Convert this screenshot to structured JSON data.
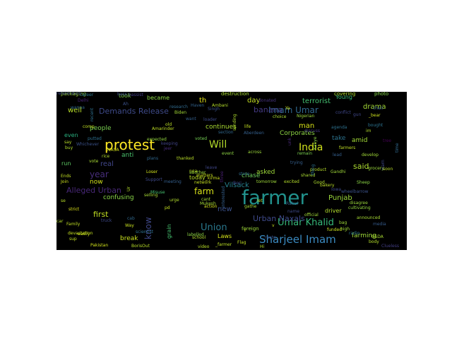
{
  "wordcloud": {
    "background": "#000000",
    "words": [
      {
        "text": "farmer",
        "color": "#21918c"
      },
      {
        "text": "protest",
        "color": "#fde725"
      },
      {
        "text": "Sharjeel Imam",
        "color": "#3b8bc2"
      },
      {
        "text": "Umar Khalid",
        "color": "#35b779"
      },
      {
        "text": "Union",
        "color": "#2a788e"
      },
      {
        "text": "Will",
        "color": "#b5de2b"
      },
      {
        "text": "India",
        "color": "#d0e11c"
      },
      {
        "text": "Urban Naxals",
        "color": "#3e4989"
      },
      {
        "text": "Alleged Urban",
        "color": "#482878"
      },
      {
        "text": "Imam Umar",
        "color": "#31688e"
      },
      {
        "text": "Demands Release",
        "color": "#3e4a89"
      },
      {
        "text": "Agitating",
        "color": "#26828e"
      },
      {
        "text": "terrorist",
        "color": "#44bf70"
      },
      {
        "text": "farm",
        "color": "#d8e219"
      },
      {
        "text": "banana",
        "color": "#443983"
      },
      {
        "text": "year",
        "color": "#472d7b"
      },
      {
        "text": "said",
        "color": "#addc30"
      },
      {
        "text": "well",
        "color": "#b8de29"
      },
      {
        "text": "first",
        "color": "#c2df23"
      },
      {
        "text": "Punjab",
        "color": "#9bd93c"
      },
      {
        "text": "chase",
        "color": "#6ccd5a"
      },
      {
        "text": "farming",
        "color": "#a0da39"
      },
      {
        "text": "now",
        "color": "#d2e21b"
      },
      {
        "text": "drama",
        "color": "#a5db36"
      },
      {
        "text": "day",
        "color": "#c5e021"
      },
      {
        "text": "Corporates",
        "color": "#8ed645"
      },
      {
        "text": "Vilsack",
        "color": "#27808e"
      },
      {
        "text": "today",
        "color": "#bddf26"
      },
      {
        "text": "continues",
        "color": "#aadc32"
      },
      {
        "text": "people",
        "color": "#7ad151"
      },
      {
        "text": "Young",
        "color": "#38b977"
      },
      {
        "text": "man",
        "color": "#d8e219"
      },
      {
        "text": "amid",
        "color": "#a2da37"
      },
      {
        "text": "take",
        "color": "#2c738e"
      },
      {
        "text": "asked",
        "color": "#9fda3a"
      },
      {
        "text": "new",
        "color": "#3b528b"
      },
      {
        "text": "real",
        "color": "#404688"
      },
      {
        "text": "break",
        "color": "#cae11f"
      },
      {
        "text": "know",
        "color": "#3f4788"
      },
      {
        "text": "run",
        "color": "#5cc863"
      },
      {
        "text": "even",
        "color": "#2ab07f"
      },
      {
        "text": "anti",
        "color": "#4ac16d"
      },
      {
        "text": "became",
        "color": "#8bd646"
      },
      {
        "text": "took",
        "color": "#7fd34e"
      },
      {
        "text": "th",
        "color": "#e5e419"
      },
      {
        "text": "driver",
        "color": "#b2dd2d"
      },
      {
        "text": "Laws",
        "color": "#d5e21a"
      },
      {
        "text": "grain",
        "color": "#46c06f"
      },
      {
        "text": "confusing",
        "color": "#89d548"
      },
      {
        "text": "foreign",
        "color": "#9bd93c"
      },
      {
        "text": "packaging",
        "color": "#9dd93b"
      },
      {
        "text": "destruction",
        "color": "#a8db34"
      },
      {
        "text": "covering",
        "color": "#b0dd2f"
      },
      {
        "text": "photo",
        "color": "#85d54a"
      },
      {
        "text": "research",
        "color": "#306a8e"
      },
      {
        "text": "Ambani",
        "color": "#b5de2b"
      },
      {
        "text": "Biden",
        "color": "#a5db36"
      },
      {
        "text": "Singh",
        "color": "#3b528b"
      },
      {
        "text": "donated",
        "color": "#46337f"
      },
      {
        "text": "conflict",
        "color": "#3f4788"
      },
      {
        "text": "bought",
        "color": "#2c728e"
      },
      {
        "text": "choice",
        "color": "#aadc32"
      },
      {
        "text": "Nigerian",
        "color": "#9bd93c"
      },
      {
        "text": "agenda",
        "color": "#2d708e"
      },
      {
        "text": "section",
        "color": "#31688e"
      },
      {
        "text": "Amarinder",
        "color": "#c0df25"
      },
      {
        "text": "keeping",
        "color": "#414487"
      },
      {
        "text": "voted",
        "color": "#75d054"
      },
      {
        "text": "event",
        "color": "#8fd744"
      },
      {
        "text": "across",
        "color": "#9dd93b"
      },
      {
        "text": "remain",
        "color": "#7cd250"
      },
      {
        "text": "lead",
        "color": "#355f8d"
      },
      {
        "text": "develop",
        "color": "#a2da37"
      },
      {
        "text": "rice",
        "color": "#b2dd2d"
      },
      {
        "text": "plans",
        "color": "#31688e"
      },
      {
        "text": "thanked",
        "color": "#bade28"
      },
      {
        "text": "Loser",
        "color": "#d0e11c"
      },
      {
        "text": "Bori",
        "color": "#3f4788"
      },
      {
        "text": "store",
        "color": "#2f6c8e"
      },
      {
        "text": "trying",
        "color": "#35608d"
      },
      {
        "text": "product",
        "color": "#b8de29"
      },
      {
        "text": "Gandhi",
        "color": "#a0da39"
      },
      {
        "text": "grocery",
        "color": "#9bd93c"
      },
      {
        "text": "Join",
        "color": "#cde11d"
      },
      {
        "text": "Ends",
        "color": "#c2df23"
      },
      {
        "text": "nga",
        "color": "#bddf26"
      },
      {
        "text": "selling",
        "color": "#a8db34"
      },
      {
        "text": "matters",
        "color": "#c8e020"
      },
      {
        "text": "network",
        "color": "#c5e021"
      },
      {
        "text": "tomorrow",
        "color": "#9fda3a"
      },
      {
        "text": "excited",
        "color": "#b5de2b"
      },
      {
        "text": "shared",
        "color": "#aadc32"
      },
      {
        "text": "Good",
        "color": "#b0dd2f"
      },
      {
        "text": "bakery",
        "color": "#bade28"
      },
      {
        "text": "Iowa",
        "color": "#3e4989"
      },
      {
        "text": "wheelbarrow",
        "color": "#3b528b"
      },
      {
        "text": "Sheep",
        "color": "#8bd646"
      },
      {
        "text": "strict",
        "color": "#dde318"
      },
      {
        "text": "Misuse",
        "color": "#46c06f"
      },
      {
        "text": "meeting",
        "color": "#355f8d"
      },
      {
        "text": "urge",
        "color": "#b2dd2d"
      },
      {
        "text": "Mukesh",
        "color": "#a5db36"
      },
      {
        "text": "action",
        "color": "#d2e21b"
      },
      {
        "text": "gathe",
        "color": "#a8db34"
      },
      {
        "text": "Rahul",
        "color": "#33638d"
      },
      {
        "text": "cultivating",
        "color": "#95d840"
      },
      {
        "text": "disagree",
        "color": "#9bd93c"
      },
      {
        "text": "Family",
        "color": "#c0df25"
      },
      {
        "text": "scientist",
        "color": "#2e6f8e"
      },
      {
        "text": "school",
        "color": "#b0dd2f"
      },
      {
        "text": "labelled",
        "color": "#8ed645"
      },
      {
        "text": "official",
        "color": "#a2da37"
      },
      {
        "text": "funded",
        "color": "#cae11f"
      },
      {
        "text": "announced",
        "color": "#a8db34"
      },
      {
        "text": "devastation",
        "color": "#c5e021"
      },
      {
        "text": "media",
        "color": "#365c8d"
      },
      {
        "text": "USDA",
        "color": "#aadc32"
      },
      {
        "text": "body",
        "color": "#b5de2b"
      },
      {
        "text": "Pakistan",
        "color": "#d0e11c"
      },
      {
        "text": "BorisOut",
        "color": "#b8de29"
      },
      {
        "text": "Flag",
        "color": "#c2df23"
      },
      {
        "text": "_farmer",
        "color": "#bddf26"
      },
      {
        "text": "Clueless",
        "color": "#433e85"
      },
      {
        "text": "high",
        "color": "#a0da39"
      },
      {
        "text": "bag",
        "color": "#9fda3a"
      },
      {
        "text": "cab",
        "color": "#31688e"
      },
      {
        "text": "Way",
        "color": "#c8e020"
      },
      {
        "text": "buy",
        "color": "#b2dd2d"
      },
      {
        "text": "say",
        "color": "#bade28"
      },
      {
        "text": "vote",
        "color": "#a8db34"
      },
      {
        "text": "Whichever",
        "color": "#3b528b"
      },
      {
        "text": "comp",
        "color": "#c2df23"
      },
      {
        "text": "putted",
        "color": "#2d708e"
      },
      {
        "text": "want",
        "color": "#35608d"
      },
      {
        "text": "loader",
        "color": "#3e4a89"
      },
      {
        "text": "life",
        "color": "#c5e021"
      },
      {
        "text": "discuss",
        "color": "#453882"
      },
      {
        "text": "chair",
        "color": "#365c8d"
      },
      {
        "text": "_bear",
        "color": "#cde11d"
      },
      {
        "text": "another",
        "color": "#9bd93c"
      },
      {
        "text": "leave",
        "color": "#3f4788"
      },
      {
        "text": "Aberdeen",
        "color": "#35608d"
      },
      {
        "text": "Ya",
        "color": "#c8e020"
      },
      {
        "text": "old",
        "color": "#bddf26"
      },
      {
        "text": "expected",
        "color": "#95d840"
      },
      {
        "text": "cant",
        "color": "#a5db36"
      },
      {
        "text": "Ah",
        "color": "#3b528b"
      },
      {
        "text": "sup",
        "color": "#c0df25"
      },
      {
        "text": "car",
        "color": "#b5de2b"
      },
      {
        "text": "easily",
        "color": "#cae11f"
      },
      {
        "text": "truck",
        "color": "#3e4989"
      },
      {
        "text": "se",
        "color": "#b8de29"
      },
      {
        "text": "NASA",
        "color": "#d5e21a"
      },
      {
        "text": "bass",
        "color": "#3e4a89"
      },
      {
        "text": "bassist",
        "color": "#433e85"
      },
      {
        "text": "recent",
        "color": "#2e6f8e"
      },
      {
        "text": "tree",
        "color": "#440154"
      },
      {
        "text": "wanna",
        "color": "#31688e"
      },
      {
        "text": "Haven",
        "color": "#33638d"
      },
      {
        "text": "I",
        "color": "#c8e020"
      },
      {
        "text": "v",
        "color": "#c8e020"
      },
      {
        "text": "Hi",
        "color": "#b2dd2d"
      },
      {
        "text": "im",
        "color": "#b5de2b"
      },
      {
        "text": "warn",
        "color": "#3e4989"
      },
      {
        "text": "soon",
        "color": "#bade28"
      },
      {
        "text": "career",
        "color": "#2a788e"
      },
      {
        "text": "Delhi",
        "color": "#482475"
      },
      {
        "text": "jeer",
        "color": "#472d7b"
      },
      {
        "text": "_kirma",
        "color": "#cde11d"
      },
      {
        "text": "gun",
        "color": "#3f4788"
      },
      {
        "text": "pd",
        "color": "#c5e021"
      },
      {
        "text": "let",
        "color": "#c2df23"
      },
      {
        "text": "roots",
        "color": "#3b528b"
      },
      {
        "text": "name",
        "color": "#3e4a89"
      },
      {
        "text": "sending",
        "color": "#b0dd2f"
      },
      {
        "text": "thing",
        "color": "#2d708e"
      },
      {
        "text": "unk",
        "color": "#482878"
      },
      {
        "text": "Support",
        "color": "#3e4989"
      },
      {
        "text": "video",
        "color": "#b8de29"
      },
      {
        "text": "three",
        "color": "#481f70"
      },
      {
        "text": "interested",
        "color": "#35608d"
      },
      {
        "text": "radio",
        "color": "#2c728e"
      },
      {
        "text": "Ur",
        "color": "#b5de2b"
      },
      {
        "text": "farmers",
        "color": "#c0df25"
      },
      {
        "text": "Kanye",
        "color": "#8ed645"
      },
      {
        "text": "time",
        "color": "#31688e"
      },
      {
        "text": "referendum",
        "color": "#3e4a89"
      }
    ]
  }
}
